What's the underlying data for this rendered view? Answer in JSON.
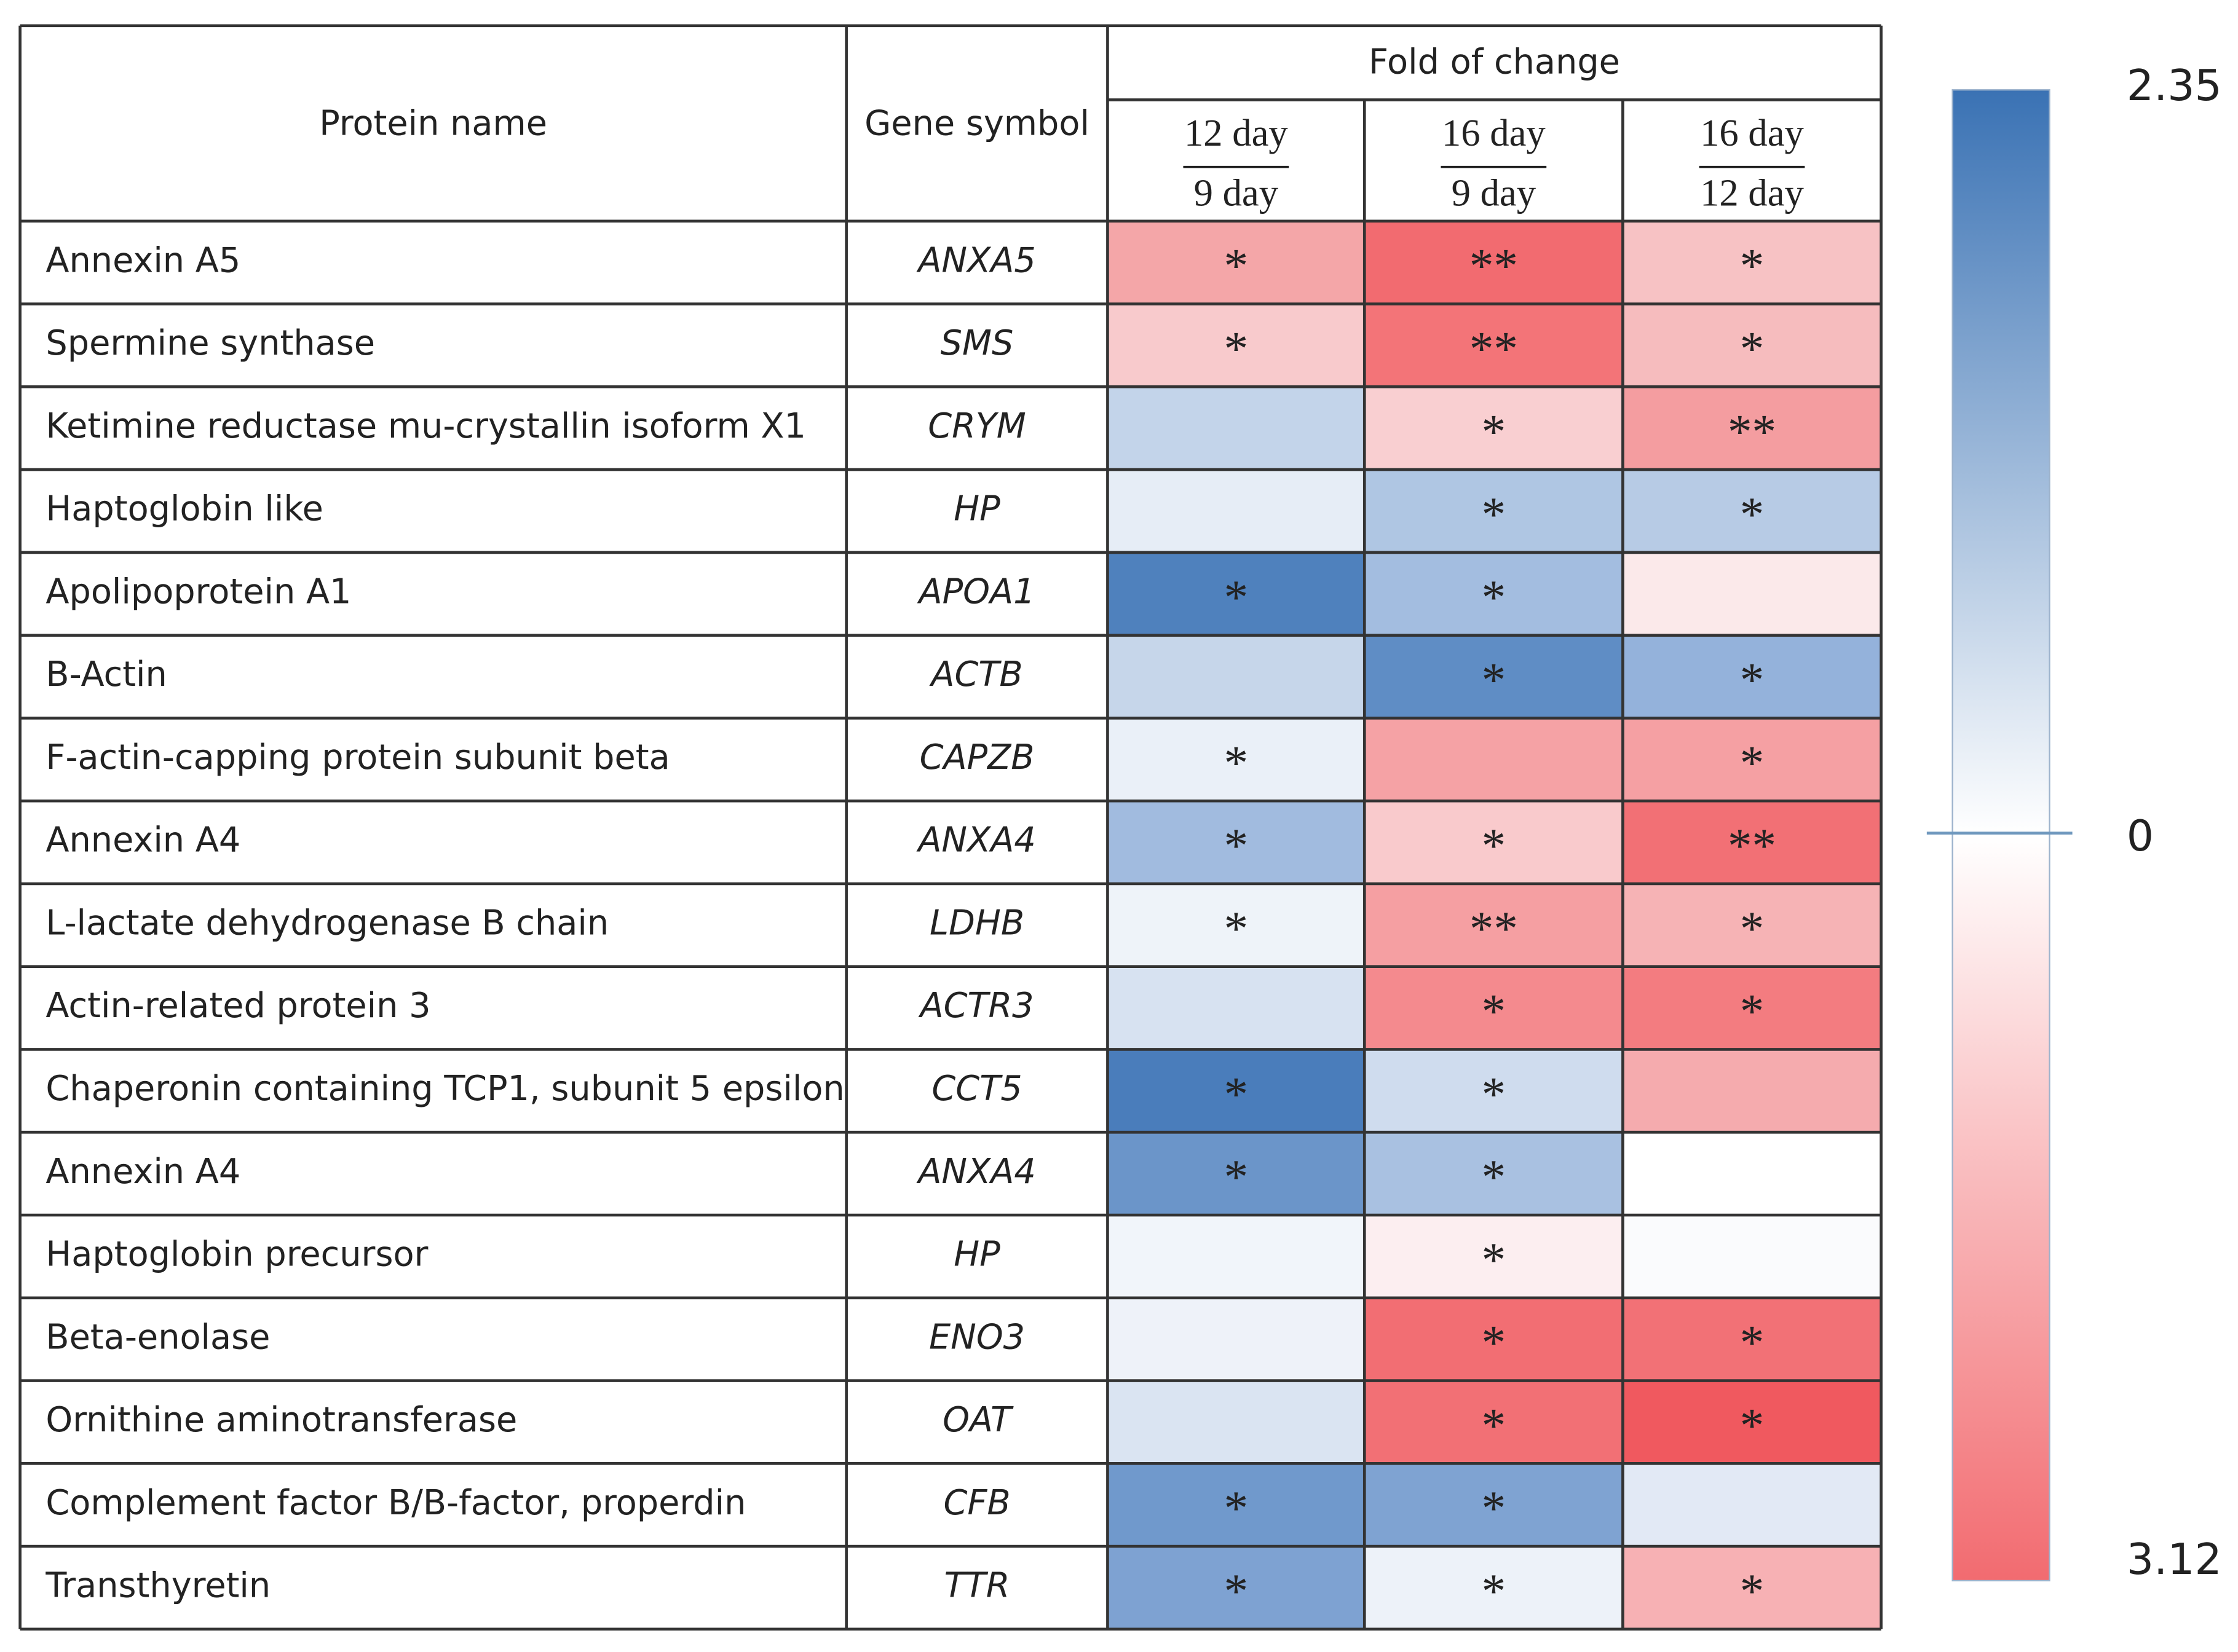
{
  "table": {
    "header": {
      "protein": "Protein name",
      "gene": "Gene symbol",
      "group": "Fold of change",
      "columns": [
        {
          "top": "12 day",
          "bottom": "9 day"
        },
        {
          "top": "16 day",
          "bottom": "9 day"
        },
        {
          "top": "16 day",
          "bottom": "12 day"
        }
      ]
    },
    "rows": [
      {
        "protein": "Annexin A5",
        "gene": "ANXA5",
        "cells": [
          {
            "stars": "*",
            "color": "#f4a6a8"
          },
          {
            "stars": "**",
            "color": "#f26b70"
          },
          {
            "stars": "*",
            "color": "#f7c2c4"
          }
        ]
      },
      {
        "protein": "Spermine  synthase",
        "gene": "SMS",
        "cells": [
          {
            "stars": "*",
            "color": "#f8cacc"
          },
          {
            "stars": "**",
            "color": "#f37478"
          },
          {
            "stars": "*",
            "color": "#f6bcbe"
          }
        ]
      },
      {
        "protein": "Ketimine reductase mu-crystallin isoform X1",
        "gene": "CRYM",
        "cells": [
          {
            "color": "#c3d4ea"
          },
          {
            "stars": "*",
            "color": "#f9cfd1"
          },
          {
            "stars": "**",
            "color": "#f49da0"
          }
        ]
      },
      {
        "protein": "Haptoglobin like",
        "gene": "HP",
        "cells": [
          {
            "color": "#e6edf6"
          },
          {
            "stars": "*",
            "color": "#afc6e3"
          },
          {
            "stars": "*",
            "color": "#b7cbe5"
          }
        ]
      },
      {
        "protein": "Apolipoprotein  A1",
        "gene": "APOA1",
        "cells": [
          {
            "stars": "*",
            "color": "#4f81bd"
          },
          {
            "stars": "*",
            "color": "#a3bde0"
          },
          {
            "color": "#fbe9ea"
          }
        ]
      },
      {
        "protein": "B-Actin",
        "gene": "ACTB",
        "cells": [
          {
            "color": "#c6d6ea"
          },
          {
            "stars": "*",
            "color": "#5f8dc5"
          },
          {
            "stars": "*",
            "color": "#94b2db"
          }
        ]
      },
      {
        "protein": "F-actin-capping protein  subunit  beta",
        "gene": "CAPZB",
        "cells": [
          {
            "stars": "*",
            "color": "#eaf0f8"
          },
          {
            "color": "#f5a2a5"
          },
          {
            "stars": "*",
            "color": "#f5a0a3"
          }
        ]
      },
      {
        "protein": "Annexin A4",
        "gene": "ANXA4",
        "cells": [
          {
            "stars": "*",
            "color": "#a1bbdf"
          },
          {
            "stars": "*",
            "color": "#f9cacc"
          },
          {
            "stars": "**",
            "color": "#f27075"
          }
        ]
      },
      {
        "protein": "L-lactate dehydrogenase B chain",
        "gene": "LDHB",
        "cells": [
          {
            "stars": "*",
            "color": "#eef3f9"
          },
          {
            "stars": "**",
            "color": "#f59fa2"
          },
          {
            "stars": "*",
            "color": "#f6b3b5"
          }
        ]
      },
      {
        "protein": "Actin-related protein  3",
        "gene": "ACTR3",
        "cells": [
          {
            "color": "#d7e2f1"
          },
          {
            "stars": "*",
            "color": "#f48a8e"
          },
          {
            "stars": "*",
            "color": "#f37c80"
          }
        ]
      },
      {
        "protein": "Chaperonin containing TCP1, subunit 5 epsilon",
        "gene": "CCT5",
        "cells": [
          {
            "stars": "*",
            "color": "#4a7dbb"
          },
          {
            "stars": "*",
            "color": "#cfdcee"
          },
          {
            "color": "#f5abae"
          }
        ]
      },
      {
        "protein": "Annexin A4",
        "gene": "ANXA4",
        "cells": [
          {
            "stars": "*",
            "color": "#6b95c9"
          },
          {
            "stars": "*",
            "color": "#a9c1e1"
          },
          {
            "color": "#ffffff"
          }
        ]
      },
      {
        "protein": "Haptoglobin  precursor",
        "gene": "HP",
        "cells": [
          {
            "color": "#f1f5fa"
          },
          {
            "stars": "*",
            "color": "#fceef0"
          },
          {
            "color": "#fafbfd"
          }
        ]
      },
      {
        "protein": "Beta-enolase",
        "gene": "ENO3",
        "cells": [
          {
            "color": "#eef2f9"
          },
          {
            "stars": "*",
            "color": "#f26e73"
          },
          {
            "stars": "*",
            "color": "#f27176"
          }
        ]
      },
      {
        "protein": "Ornithine aminotransferase",
        "gene": "OAT",
        "cells": [
          {
            "color": "#dae4f2"
          },
          {
            "stars": "*",
            "color": "#f27075"
          },
          {
            "stars": "*",
            "color": "#f0595f"
          }
        ]
      },
      {
        "protein": "Complement  factor B/B-factor, properdin",
        "gene": "CFB",
        "cells": [
          {
            "stars": "*",
            "color": "#7099cc"
          },
          {
            "stars": "*",
            "color": "#7fa3d2"
          },
          {
            "color": "#e2e9f5"
          }
        ]
      },
      {
        "protein": "Transthyretin",
        "gene": "TTR",
        "cells": [
          {
            "stars": "*",
            "color": "#7ea2d2"
          },
          {
            "stars": "*",
            "color": "#edf2f9"
          },
          {
            "stars": "*",
            "color": "#f7b1b4"
          }
        ]
      }
    ]
  },
  "colorbar": {
    "top_label": "2.35",
    "middle_label": "0",
    "bottom_label": "3.12",
    "top_color": "#3a72b4",
    "middle_color": "#ffffff",
    "bottom_color": "#f26b70"
  }
}
